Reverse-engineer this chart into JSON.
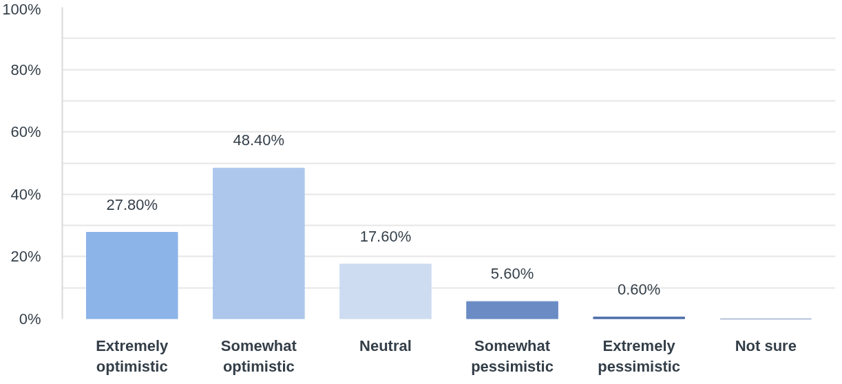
{
  "chart_data": {
    "type": "bar",
    "categories": [
      "Extremely optimistic",
      "Somewhat optimistic",
      "Neutral",
      "Somewhat pessimistic",
      "Extremely pessimistic",
      "Not sure"
    ],
    "values": [
      27.8,
      48.4,
      17.6,
      5.6,
      0.6,
      0
    ],
    "colors": [
      "#8cb4e8",
      "#adc6ec",
      "#cddcf0",
      "#6a8bc4",
      "#4a6aa8",
      "#4a6aa8"
    ],
    "value_labels": [
      "27.80%",
      "48.40%",
      "17.60%",
      "5.60%",
      "0.60%",
      null
    ],
    "ylim": [
      0,
      100
    ],
    "yticks": [
      {
        "value": 0,
        "label": "0%"
      },
      {
        "value": 10,
        "label": null
      },
      {
        "value": 20,
        "label": "20%"
      },
      {
        "value": 30,
        "label": null
      },
      {
        "value": 40,
        "label": "40%"
      },
      {
        "value": 50,
        "label": null
      },
      {
        "value": 60,
        "label": "60%"
      },
      {
        "value": 70,
        "label": null
      },
      {
        "value": 80,
        "label": "80%"
      },
      {
        "value": 90,
        "label": null
      },
      {
        "value": 100,
        "label": "100%"
      }
    ],
    "grid": "y"
  }
}
